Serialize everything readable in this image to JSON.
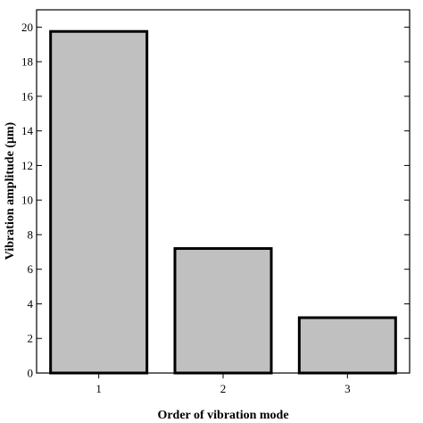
{
  "chart_data": {
    "type": "bar",
    "categories": [
      "1",
      "2",
      "3"
    ],
    "values": [
      19.75,
      7.2,
      3.2
    ],
    "xlabel": "Order of vibration mode",
    "ylabel": "Vibration amplitude (μm)",
    "ylim": [
      0,
      21
    ],
    "yticks": [
      0,
      2,
      4,
      6,
      8,
      10,
      12,
      14,
      16,
      18,
      20
    ],
    "xlim": [
      0.5,
      3.5
    ],
    "grid": false,
    "bar_color": "#c0c0c0",
    "edge_color": "#000000"
  }
}
